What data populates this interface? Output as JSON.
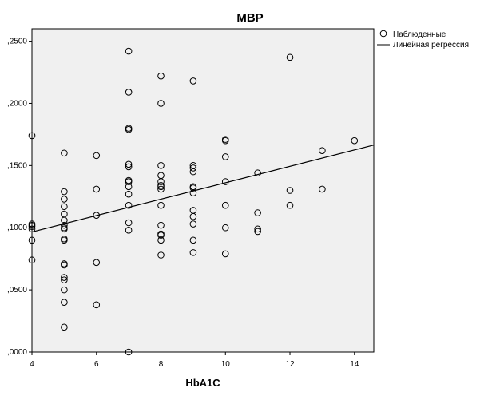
{
  "chart_data": {
    "type": "scatter",
    "title": "MBP",
    "xlabel": "HbA1C",
    "ylabel": "",
    "xlim": [
      4,
      14.6
    ],
    "ylim": [
      0,
      0.26
    ],
    "xticks": [
      4,
      6,
      8,
      10,
      12,
      14
    ],
    "xtick_labels": [
      "4",
      "6",
      "8",
      "10",
      "12",
      "14"
    ],
    "yticks": [
      0,
      0.05,
      0.1,
      0.15,
      0.2,
      0.25
    ],
    "ytick_labels": [
      ",0000",
      ",0500",
      ",1000",
      ",1500",
      ",2000",
      ",2500"
    ],
    "grid": false,
    "legend_position": "top-right (outside plot)",
    "colors": {
      "plot_bg": "#f0f0f0",
      "marker": "#000000",
      "line": "#000000"
    },
    "series": [
      {
        "name": "Наблюденные",
        "marker": "open-circle",
        "points": [
          [
            4,
            0.174
          ],
          [
            4,
            0.103
          ],
          [
            4,
            0.102
          ],
          [
            4,
            0.101
          ],
          [
            4,
            0.099
          ],
          [
            4,
            0.09
          ],
          [
            4,
            0.074
          ],
          [
            5,
            0.16
          ],
          [
            5,
            0.129
          ],
          [
            5,
            0.123
          ],
          [
            5,
            0.117
          ],
          [
            5,
            0.111
          ],
          [
            5,
            0.106
          ],
          [
            5,
            0.102
          ],
          [
            5,
            0.1
          ],
          [
            5,
            0.099
          ],
          [
            5,
            0.091
          ],
          [
            5,
            0.09
          ],
          [
            5,
            0.071
          ],
          [
            5,
            0.07
          ],
          [
            5,
            0.06
          ],
          [
            5,
            0.058
          ],
          [
            5,
            0.05
          ],
          [
            5,
            0.04
          ],
          [
            5,
            0.02
          ],
          [
            6,
            0.158
          ],
          [
            6,
            0.131
          ],
          [
            6,
            0.11
          ],
          [
            6,
            0.072
          ],
          [
            6,
            0.038
          ],
          [
            7,
            0.242
          ],
          [
            7,
            0.209
          ],
          [
            7,
            0.18
          ],
          [
            7,
            0.179
          ],
          [
            7,
            0.151
          ],
          [
            7,
            0.149
          ],
          [
            7,
            0.138
          ],
          [
            7,
            0.137
          ],
          [
            7,
            0.133
          ],
          [
            7,
            0.127
          ],
          [
            7,
            0.118
          ],
          [
            7,
            0.104
          ],
          [
            7,
            0.098
          ],
          [
            7,
            0.0
          ],
          [
            8,
            0.222
          ],
          [
            8,
            0.2
          ],
          [
            8,
            0.15
          ],
          [
            8,
            0.142
          ],
          [
            8,
            0.137
          ],
          [
            8,
            0.134
          ],
          [
            8,
            0.133
          ],
          [
            8,
            0.131
          ],
          [
            8,
            0.118
          ],
          [
            8,
            0.102
          ],
          [
            8,
            0.095
          ],
          [
            8,
            0.094
          ],
          [
            8,
            0.09
          ],
          [
            8,
            0.078
          ],
          [
            9,
            0.218
          ],
          [
            9,
            0.15
          ],
          [
            9,
            0.148
          ],
          [
            9,
            0.145
          ],
          [
            9,
            0.133
          ],
          [
            9,
            0.132
          ],
          [
            9,
            0.128
          ],
          [
            9,
            0.114
          ],
          [
            9,
            0.109
          ],
          [
            9,
            0.103
          ],
          [
            9,
            0.09
          ],
          [
            9,
            0.08
          ],
          [
            10,
            0.171
          ],
          [
            10,
            0.17
          ],
          [
            10,
            0.157
          ],
          [
            10,
            0.137
          ],
          [
            10,
            0.118
          ],
          [
            10,
            0.1
          ],
          [
            10,
            0.079
          ],
          [
            11,
            0.144
          ],
          [
            11,
            0.112
          ],
          [
            11,
            0.099
          ],
          [
            11,
            0.097
          ],
          [
            12,
            0.237
          ],
          [
            12,
            0.13
          ],
          [
            12,
            0.118
          ],
          [
            13,
            0.162
          ],
          [
            13,
            0.131
          ],
          [
            14,
            0.17
          ]
        ]
      },
      {
        "name": "Линейная регрессия",
        "type": "line",
        "points": [
          [
            4,
            0.0966
          ],
          [
            14.6,
            0.1665
          ]
        ]
      }
    ]
  }
}
